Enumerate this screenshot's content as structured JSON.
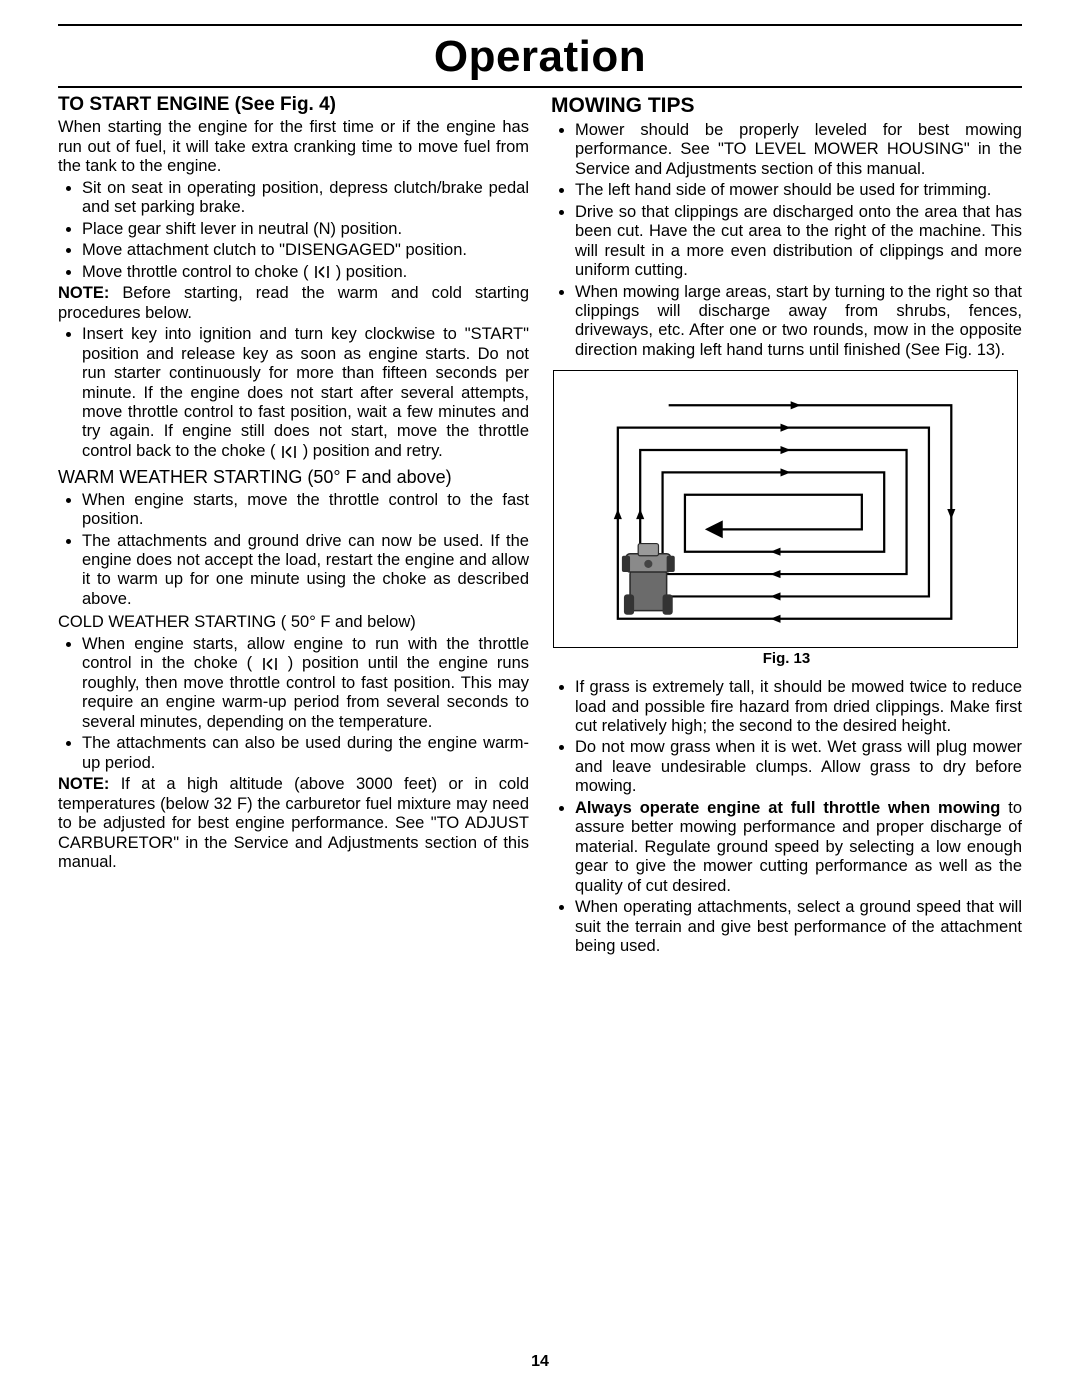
{
  "title": "Operation",
  "pageNumber": "14",
  "left": {
    "h1": "TO START ENGINE (See Fig. 4)",
    "intro": "When starting the engine for the first time or if the engine has run out of fuel, it will take extra cranking time to move fuel from the tank to the engine.",
    "list1": [
      "Sit on seat in operating position, depress clutch/brake pedal and set parking brake.",
      "Place gear shift lever in neutral (N) position.",
      "Move attachment clutch to \"DISENGAGED\" position.",
      "Move throttle control to choke ( |CHOKE| ) position."
    ],
    "note1_label": "NOTE:",
    "note1_text": " Before starting, read the warm and cold starting procedures below.",
    "list2": [
      "Insert key into ignition and turn key clockwise to \"START\" position and release key as soon as engine starts. Do not run starter continuously for more than fifteen seconds per minute. If the engine does not start after several attempts, move throttle control to fast  position, wait a few minutes and try again. If engine still does not start, move the throttle control back to the choke ( |CHOKE| ) position and retry."
    ],
    "warmHeading": "WARM WEATHER STARTING (50° F and above)",
    "list3": [
      "When engine starts, move the throttle control to the fast position.",
      "The attachments and ground drive can now be used. If the engine does not accept the load, restart the engine and allow it to warm up for one minute using the choke as described above."
    ],
    "coldHeading": "COLD WEATHER STARTING ( 50° F and below)",
    "list4": [
      "When engine starts, allow engine to run with the throttle control in the choke ( |CHOKE| ) position until the engine runs roughly, then move throttle control to fast position. This may require an engine warm-up period from several seconds to several minutes, depending on the temperature.",
      "The attachments can also be used during the engine warm-up period."
    ],
    "note2_label": "NOTE:",
    "note2_text": " If at a high altitude (above 3000 feet) or in cold temperatures (below 32 F) the carburetor fuel mixture may need to be adjusted for best engine performance. See \"TO ADJUST CARBURETOR\" in the Service and Adjustments section of this manual."
  },
  "right": {
    "h1": "MOWING TIPS",
    "listA": [
      "Mower should be properly leveled for best mowing performance. See \"TO LEVEL MOWER HOUSING\" in the Service and Adjustments section of this manual.",
      "The left hand side of mower should be used for trimming.",
      "Drive so that clippings are discharged onto the area that has been cut. Have the cut area to the right of the machine. This will result in a more even distribution of clippings and more uniform cutting.",
      "When mowing large areas, start by turning to the right so that clippings will discharge away from shrubs, fences, driveways, etc. After one or two rounds, mow in the opposite direction making left hand turns until finished (See Fig. 13)."
    ],
    "figCaption": "Fig. 13",
    "listB": [
      "If  grass is extremely tall, it should be mowed twice to reduce load and possible fire hazard from dried clippings. Make first cut relatively high; the second to the desired height.",
      "Do not mow grass when it is wet. Wet grass will plug mower and leave undesirable clumps. Allow grass to dry before mowing.",
      {
        "bold": "Always operate engine at full throttle when mowing",
        "rest": " to assure better mowing performance and proper discharge of material. Regulate ground speed by selecting a low enough gear to give the mower cutting performance as well as the quality of cut desired."
      },
      "When operating attachments, select a ground speed that will suit the terrain and give best performance of the attachment being used."
    ]
  }
}
